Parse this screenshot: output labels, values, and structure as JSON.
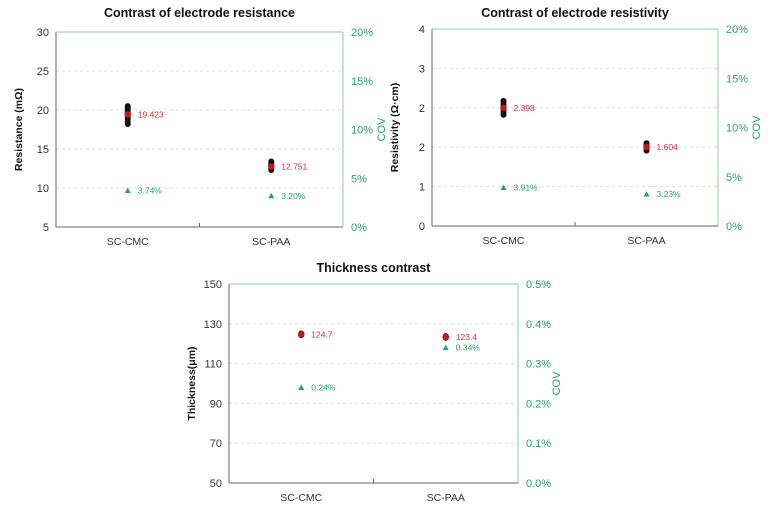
{
  "chart_data": [
    {
      "type": "scatter",
      "title": "Contrast of electrode resistance",
      "ylabel": "Resistance  (mΩ)",
      "y2label": "COV",
      "categories": [
        "SC-CMC",
        "SC-PAA"
      ],
      "ylim": [
        5,
        30
      ],
      "yticks": [
        5,
        10,
        15,
        20,
        25,
        30
      ],
      "ytick_labels": [
        "5",
        "10",
        "15",
        "20",
        "25",
        "30"
      ],
      "y2lim": [
        0,
        20
      ],
      "y2tick_labels": [
        "0%",
        "5%",
        "10%",
        "15%",
        "20%"
      ],
      "samples": [
        [
          18.2,
          18.5,
          18.9,
          19.2,
          19.6,
          19.9,
          20.2,
          20.5
        ],
        [
          12.3,
          12.5,
          12.8,
          13.0,
          13.2,
          13.4
        ]
      ],
      "means": [
        19.423,
        12.751
      ],
      "mean_labels": [
        "19.423",
        "12.751"
      ],
      "cov": [
        3.74,
        3.2
      ],
      "cov_labels": [
        "3.74%",
        "3.20%"
      ],
      "grid": "horizontal dashed"
    },
    {
      "type": "scatter",
      "title": "Contrast of electrode resistivity",
      "ylabel": "Resistivity (Ω·cm)",
      "y2label": "COV",
      "categories": [
        "SC-CMC",
        "SC-PAA"
      ],
      "ylim": [
        0,
        4
      ],
      "yticks": [
        0,
        0.8,
        1.6,
        2.4,
        3.2,
        4
      ],
      "ytick_labels": [
        "0",
        "1",
        "2",
        "2",
        "3",
        "4"
      ],
      "y2lim": [
        0,
        20
      ],
      "y2tick_labels": [
        "0%",
        "5%",
        "10%",
        "15%",
        "20%"
      ],
      "samples": [
        [
          2.26,
          2.31,
          2.36,
          2.4,
          2.45,
          2.5,
          2.54
        ],
        [
          1.53,
          1.57,
          1.6,
          1.64,
          1.68
        ]
      ],
      "means": [
        2.398,
        1.604
      ],
      "mean_labels": [
        "2.398",
        "1.604"
      ],
      "cov": [
        3.91,
        3.23
      ],
      "cov_labels": [
        "3.91%",
        "3.23%"
      ],
      "grid": "horizontal dashed"
    },
    {
      "type": "scatter",
      "title": "Thickness contrast",
      "ylabel": "Thickness(μm)",
      "y2label": "COV",
      "categories": [
        "SC-CMC",
        "SC-PAA"
      ],
      "ylim": [
        50,
        150
      ],
      "yticks": [
        50,
        70,
        90,
        110,
        130,
        150
      ],
      "ytick_labels": [
        "50",
        "70",
        "90",
        "110",
        "130",
        "150"
      ],
      "y2lim": [
        0,
        0.5
      ],
      "y2tick_labels": [
        "0.0%",
        "0.1%",
        "0.2%",
        "0.3%",
        "0.4%",
        "0.5%"
      ],
      "samples": [
        [
          124.3,
          124.7,
          125.1
        ],
        [
          123.0,
          123.4,
          123.8
        ]
      ],
      "means": [
        124.7,
        123.4
      ],
      "mean_labels": [
        "124.7",
        "123.4"
      ],
      "cov": [
        0.24,
        0.34
      ],
      "cov_labels": [
        "0.24%",
        "0.34%"
      ],
      "grid": "horizontal dashed"
    }
  ],
  "colors": {
    "sample": "#111111",
    "mean": "#c8141e",
    "mean_label": "#c8323a",
    "cov": "#2aa36a",
    "frame": "#8fc9ac",
    "grid": "#dddddd"
  }
}
